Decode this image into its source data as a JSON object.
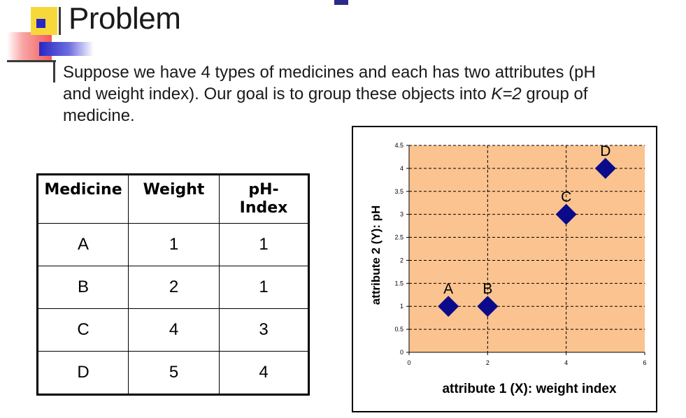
{
  "slide": {
    "title": "Problem",
    "body_line1": "Suppose we have 4 types of medicines and each has two attributes (pH",
    "body_line2_pre": "and weight index). Our goal is to group these objects into ",
    "body_line2_k": "K=2",
    "body_line2_post": " group of",
    "body_line3": "medicine."
  },
  "table": {
    "headers": [
      "Medicine",
      "Weight",
      "pH-\nIndex"
    ],
    "rows": [
      [
        "A",
        "1",
        "1"
      ],
      [
        "B",
        "2",
        "1"
      ],
      [
        "C",
        "4",
        "3"
      ],
      [
        "D",
        "5",
        "4"
      ]
    ]
  },
  "chart_data": {
    "type": "scatter",
    "xlabel": "attribute 1 (X): weight index",
    "ylabel": "attribute 2 (Y): pH",
    "xlim": [
      0,
      6
    ],
    "ylim": [
      0,
      4.5
    ],
    "xticks": [
      "0",
      "2",
      "4",
      "6"
    ],
    "xtick_values": [
      0,
      2,
      4,
      6
    ],
    "yticks": [
      "0",
      "0.5",
      "1",
      "1.5",
      "2",
      "2.5",
      "3",
      "3.5",
      "4",
      "4.5"
    ],
    "ytick_values": [
      0,
      0.5,
      1,
      1.5,
      2,
      2.5,
      3,
      3.5,
      4,
      4.5
    ],
    "grid": true,
    "points": [
      {
        "label": "A",
        "x": 1,
        "y": 1
      },
      {
        "label": "B",
        "x": 2,
        "y": 1
      },
      {
        "label": "C",
        "x": 4,
        "y": 3
      },
      {
        "label": "D",
        "x": 5,
        "y": 4
      }
    ],
    "colors": {
      "plot_bg": "#fbc38f",
      "marker": "#0a0a8a",
      "grid": "#000000"
    }
  }
}
